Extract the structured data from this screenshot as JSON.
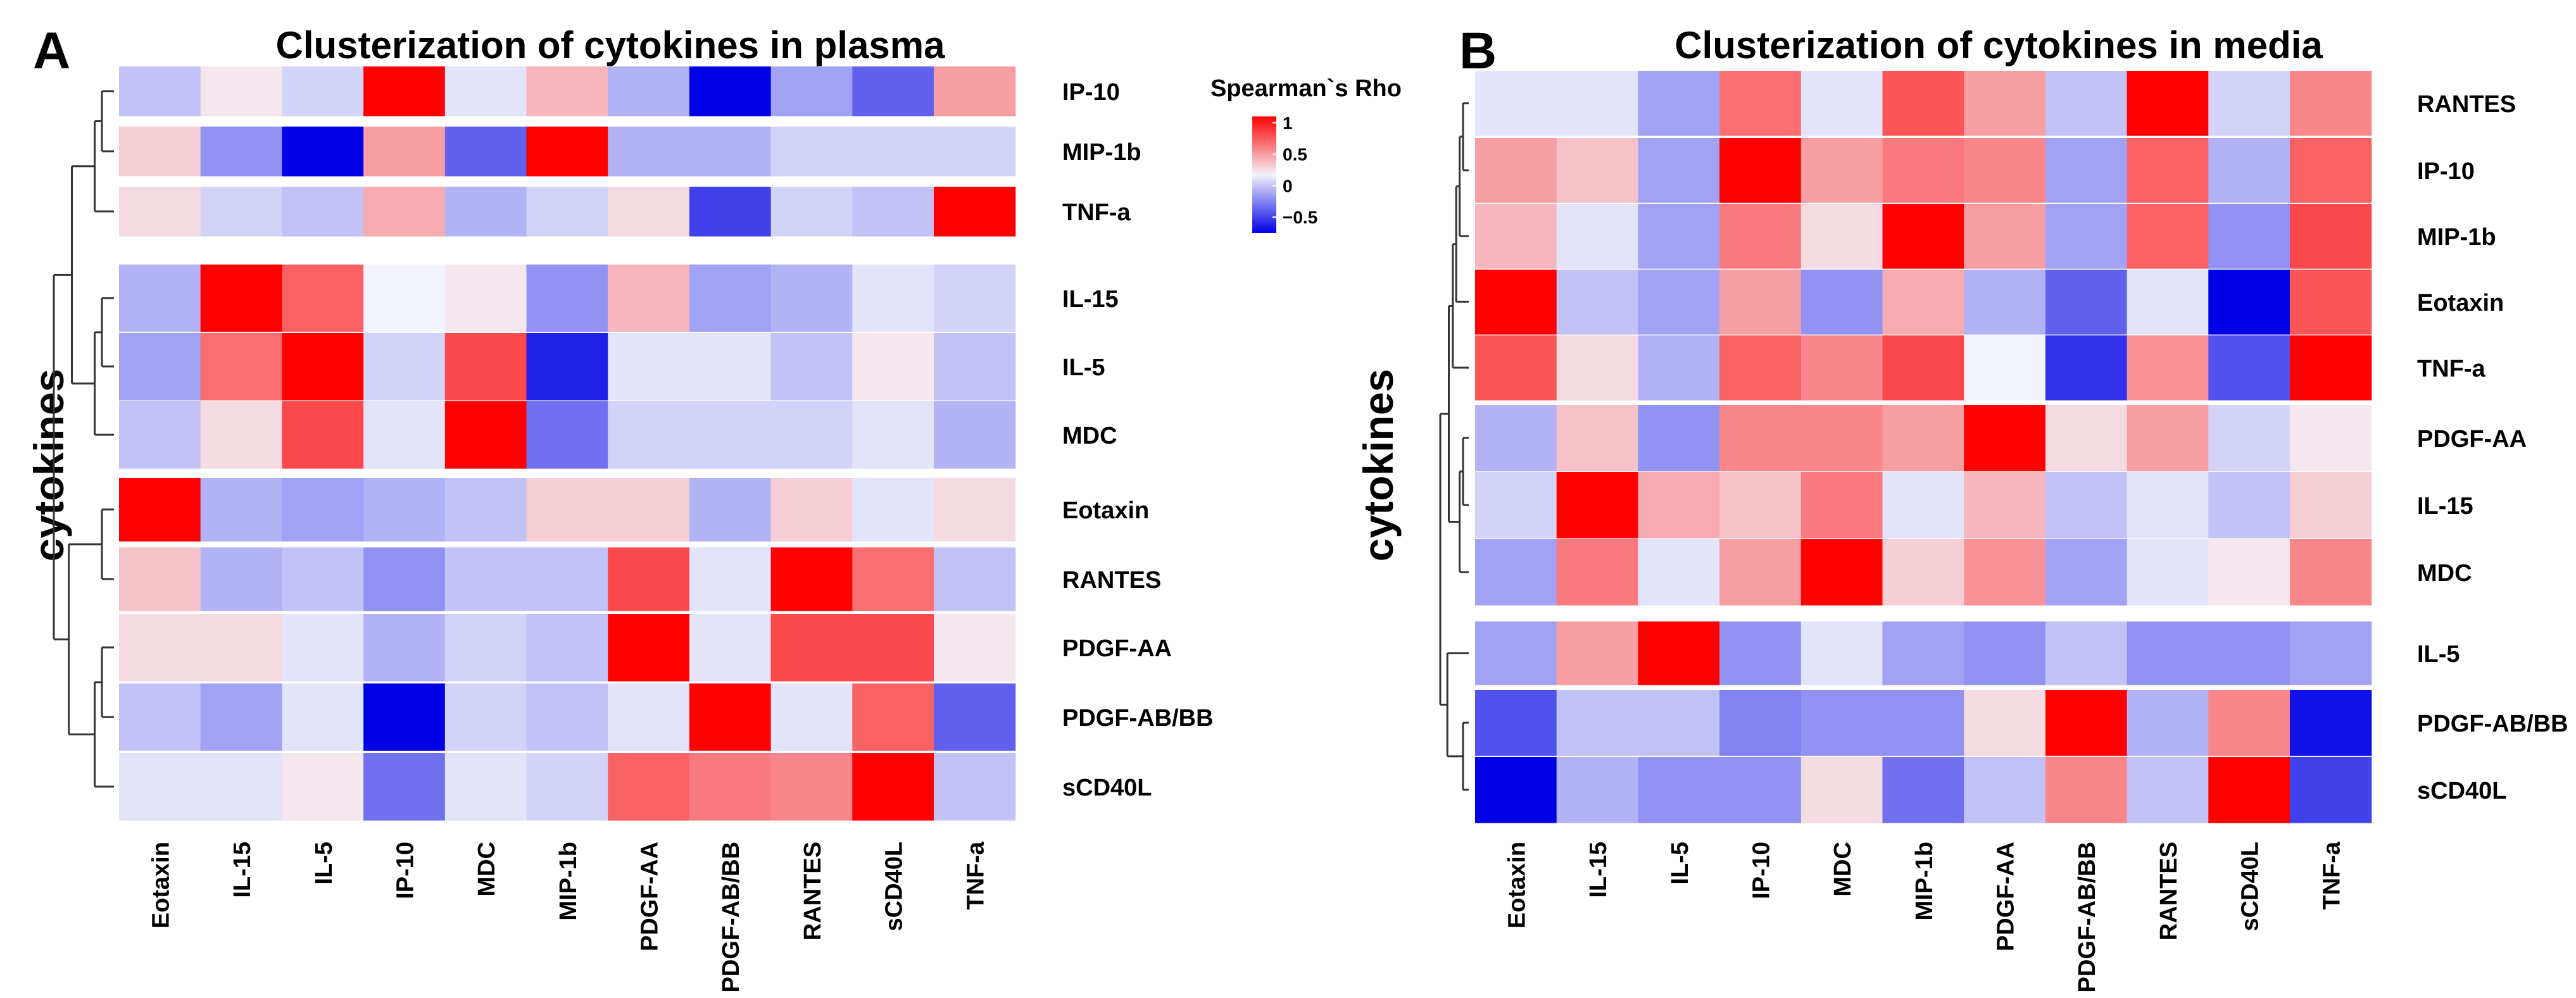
{
  "chart_data": [
    {
      "panel_letter": "A",
      "type": "heatmap",
      "title": "Clusterization of cytokines in plasma",
      "ylabel": "cytokines",
      "x_labels": [
        "Eotaxin",
        "IL-15",
        "IL-5",
        "IP-10",
        "MDC",
        "MIP-1b",
        "PDGF-AA",
        "PDGF-AB/BB",
        "RANTES",
        "sCD40L",
        "TNF-a"
      ],
      "y_labels": [
        "IP-10",
        "MIP-1b",
        "TNF-a",
        "IL-15",
        "IL-5",
        "MDC",
        "Eotaxin",
        "RANTES",
        "PDGF-AA",
        "PDGF-AB/BB",
        "sCD40L"
      ],
      "row_groups": [
        [
          0,
          1,
          2
        ],
        [
          3,
          4,
          5
        ],
        [
          6,
          7
        ],
        [
          8,
          9,
          10
        ]
      ],
      "values": [
        [
          -0.15,
          0.05,
          -0.1,
          1.0,
          -0.05,
          0.25,
          -0.2,
          -0.85,
          -0.25,
          -0.45,
          0.35
        ],
        [
          0.15,
          -0.3,
          -0.75,
          0.35,
          -0.45,
          1.0,
          -0.2,
          -0.2,
          -0.1,
          -0.1,
          -0.1
        ],
        [
          0.1,
          -0.1,
          -0.15,
          0.3,
          -0.2,
          -0.1,
          0.1,
          -0.55,
          -0.1,
          -0.15,
          1.0
        ],
        [
          -0.2,
          1.0,
          0.6,
          0.0,
          0.05,
          -0.3,
          0.25,
          -0.25,
          -0.2,
          -0.05,
          -0.1
        ],
        [
          -0.25,
          0.55,
          1.0,
          -0.1,
          0.7,
          -0.65,
          -0.05,
          -0.05,
          -0.15,
          0.05,
          -0.15
        ],
        [
          -0.15,
          0.1,
          0.7,
          -0.05,
          1.0,
          -0.4,
          -0.1,
          -0.1,
          -0.1,
          -0.05,
          -0.2
        ],
        [
          1.0,
          -0.2,
          -0.25,
          -0.2,
          -0.15,
          0.15,
          0.15,
          -0.2,
          0.15,
          -0.05,
          0.1
        ],
        [
          0.2,
          -0.2,
          -0.15,
          -0.3,
          -0.15,
          -0.15,
          0.7,
          -0.05,
          1.0,
          0.55,
          -0.15
        ],
        [
          0.1,
          0.1,
          -0.05,
          -0.2,
          -0.1,
          -0.15,
          1.0,
          -0.05,
          0.7,
          0.7,
          0.05
        ],
        [
          -0.15,
          -0.25,
          -0.05,
          -0.85,
          -0.1,
          -0.15,
          -0.05,
          1.0,
          -0.05,
          0.6,
          -0.45
        ],
        [
          -0.05,
          -0.05,
          0.05,
          -0.4,
          -0.05,
          -0.1,
          0.6,
          0.5,
          0.45,
          1.0,
          -0.15
        ]
      ]
    },
    {
      "panel_letter": "B",
      "type": "heatmap",
      "title": "Clusterization of cytokines in media",
      "ylabel": "cytokines",
      "x_labels": [
        "Eotaxin",
        "IL-15",
        "IL-5",
        "IP-10",
        "MDC",
        "MIP-1b",
        "PDGF-AA",
        "PDGF-AB/BB",
        "RANTES",
        "sCD40L",
        "TNF-a"
      ],
      "y_labels": [
        "RANTES",
        "IP-10",
        "MIP-1b",
        "Eotaxin",
        "TNF-a",
        "PDGF-AA",
        "IL-15",
        "MDC",
        "IL-5",
        "PDGF-AB/BB",
        "sCD40L"
      ],
      "row_groups": [
        [
          0,
          1,
          2,
          3,
          4
        ],
        [
          5,
          6,
          7
        ],
        [
          8
        ],
        [
          9,
          10
        ]
      ],
      "values": [
        [
          -0.05,
          -0.05,
          -0.25,
          0.55,
          -0.05,
          0.65,
          0.35,
          -0.15,
          1.0,
          -0.1,
          0.45
        ],
        [
          0.35,
          0.2,
          -0.25,
          1.0,
          0.35,
          0.5,
          0.45,
          -0.25,
          0.6,
          -0.2,
          0.6
        ],
        [
          0.25,
          -0.05,
          -0.25,
          0.5,
          0.1,
          1.0,
          0.35,
          -0.25,
          0.6,
          -0.3,
          0.7
        ],
        [
          1.0,
          -0.15,
          -0.25,
          0.35,
          -0.3,
          0.3,
          -0.2,
          -0.45,
          -0.05,
          -0.85,
          0.65
        ],
        [
          0.65,
          0.1,
          -0.2,
          0.6,
          0.45,
          0.7,
          0.0,
          -0.6,
          0.4,
          -0.5,
          1.0
        ],
        [
          -0.2,
          0.2,
          -0.3,
          0.45,
          0.45,
          0.35,
          1.0,
          0.1,
          0.35,
          -0.1,
          0.05
        ],
        [
          -0.1,
          1.0,
          0.3,
          0.2,
          0.5,
          -0.05,
          0.25,
          -0.15,
          -0.05,
          -0.15,
          0.15
        ],
        [
          -0.25,
          0.5,
          -0.05,
          0.35,
          1.0,
          0.15,
          0.4,
          -0.25,
          -0.05,
          0.05,
          0.45
        ],
        [
          -0.25,
          0.35,
          1.0,
          -0.3,
          -0.05,
          -0.25,
          -0.3,
          -0.15,
          -0.3,
          -0.3,
          -0.25
        ],
        [
          -0.5,
          -0.15,
          -0.15,
          -0.35,
          -0.3,
          -0.3,
          0.1,
          1.0,
          -0.2,
          0.45,
          -0.7
        ],
        [
          -0.85,
          -0.2,
          -0.3,
          -0.3,
          0.1,
          -0.4,
          -0.15,
          0.45,
          -0.15,
          1.0,
          -0.55
        ]
      ]
    }
  ],
  "legend": {
    "title": "Spearman`s Rho",
    "ticks": [
      "1",
      "0.5",
      "0",
      "−0.5"
    ],
    "tick_values": [
      1,
      0.5,
      0,
      -0.5
    ],
    "range": [
      -0.75,
      1.1
    ]
  },
  "colors": {
    "low": "#0000e6",
    "mid": "#f3f3fb",
    "high": "#ff0000"
  }
}
